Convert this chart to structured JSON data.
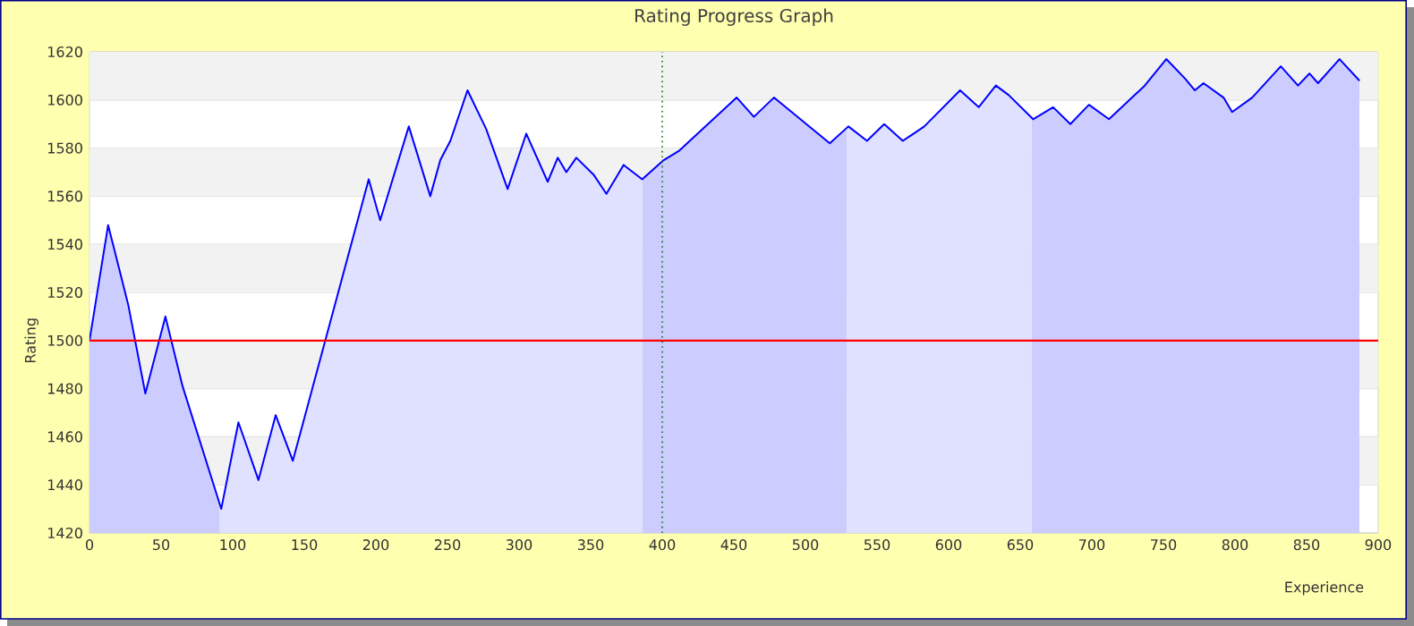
{
  "chart_data": {
    "type": "area",
    "title": "Rating Progress Graph",
    "xlabel": "Experience",
    "ylabel": "Rating",
    "xlim": [
      0,
      900
    ],
    "xticks": [
      0,
      50,
      100,
      150,
      200,
      250,
      300,
      350,
      400,
      450,
      500,
      550,
      600,
      650,
      700,
      750,
      800,
      850,
      900
    ],
    "ylim": [
      1420,
      1620
    ],
    "yticks": [
      1420,
      1440,
      1460,
      1480,
      1500,
      1520,
      1540,
      1560,
      1580,
      1600,
      1620
    ],
    "grid": "y",
    "series": [
      {
        "color": "#0000ff",
        "x": [
          0,
          13,
          27,
          39,
          53,
          65,
          92,
          104,
          118,
          130,
          142,
          195,
          203,
          223,
          238,
          245,
          252,
          264,
          277,
          292,
          305,
          320,
          327,
          333,
          340,
          352,
          361,
          373,
          386,
          401,
          412,
          452,
          464,
          478,
          517,
          530,
          543,
          555,
          568,
          583,
          608,
          621,
          633,
          642,
          659,
          673,
          685,
          698,
          712,
          737,
          752,
          765,
          772,
          778,
          792,
          798,
          812,
          832,
          844,
          852,
          858,
          873,
          887
        ],
        "values": [
          1500,
          1548,
          1515,
          1478,
          1510,
          1481,
          1430,
          1466,
          1442,
          1469,
          1450,
          1567,
          1550,
          1589,
          1560,
          1575,
          1583,
          1604,
          1588,
          1563,
          1586,
          1566,
          1576,
          1570,
          1576,
          1569,
          1561,
          1573,
          1567,
          1575,
          1579,
          1601,
          1593,
          1601,
          1582,
          1589,
          1583,
          1590,
          1583,
          1589,
          1604,
          1597,
          1606,
          1602,
          1592,
          1597,
          1590,
          1598,
          1592,
          1606,
          1617,
          1609,
          1604,
          1607,
          1601,
          1595,
          1601,
          1614,
          1606,
          1611,
          1607,
          1617,
          1608
        ]
      }
    ],
    "ref_lines": [
      {
        "axis": "y",
        "value": 1500,
        "color": "#ff0000",
        "line_style": "solid"
      },
      {
        "axis": "x",
        "value": 400,
        "color": "#007700",
        "line_style": "dotted"
      }
    ],
    "bands": [
      {
        "axis": "x",
        "from": 0,
        "to": 91,
        "color": "#ccccff"
      },
      {
        "axis": "x",
        "from": 386,
        "to": 529,
        "color": "#ccccff"
      },
      {
        "axis": "x",
        "from": 658,
        "to": 887,
        "color": "#ccccff"
      }
    ]
  }
}
